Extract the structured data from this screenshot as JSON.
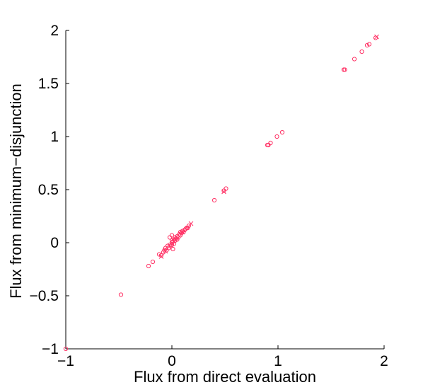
{
  "chart_data": {
    "type": "scatter",
    "title": "",
    "xlabel": "Flux from direct evaluation",
    "ylabel": "Flux from minimum−disjunction",
    "xlim": [
      -1,
      2
    ],
    "ylim": [
      -1,
      2
    ],
    "xticks": [
      -1,
      0,
      1,
      2
    ],
    "xtick_labels": [
      "−1",
      "0",
      "1",
      "2"
    ],
    "yticks": [
      -1,
      -0.5,
      0,
      0.5,
      1,
      1.5,
      2
    ],
    "ytick_labels": [
      "−1",
      "−0.5",
      "0",
      "0.5",
      "1",
      "1.5",
      "2"
    ],
    "grid": false,
    "legend": "none",
    "color": "#ff3366",
    "series": [
      {
        "marker": "circle",
        "points": [
          [
            -1.0,
            -1.0
          ],
          [
            -0.48,
            -0.49
          ],
          [
            -0.22,
            -0.22
          ],
          [
            -0.18,
            -0.18
          ],
          [
            -0.12,
            -0.11
          ],
          [
            -0.1,
            -0.12
          ],
          [
            -0.08,
            -0.09
          ],
          [
            -0.07,
            -0.07
          ],
          [
            -0.06,
            -0.05
          ],
          [
            -0.05,
            -0.07
          ],
          [
            -0.04,
            -0.03
          ],
          [
            -0.03,
            -0.05
          ],
          [
            -0.02,
            -0.02
          ],
          [
            -0.01,
            -0.03
          ],
          [
            0.0,
            0.0
          ],
          [
            0.0,
            -0.02
          ],
          [
            0.0,
            0.02
          ],
          [
            0.01,
            0.01
          ],
          [
            0.02,
            0.03
          ],
          [
            0.02,
            -0.01
          ],
          [
            0.03,
            0.02
          ],
          [
            0.03,
            0.05
          ],
          [
            0.04,
            0.04
          ],
          [
            0.05,
            0.03
          ],
          [
            0.05,
            0.06
          ],
          [
            0.06,
            0.05
          ],
          [
            0.07,
            0.08
          ],
          [
            0.08,
            0.07
          ],
          [
            0.08,
            0.1
          ],
          [
            0.09,
            0.09
          ],
          [
            0.1,
            0.11
          ],
          [
            0.11,
            0.1
          ],
          [
            0.12,
            0.12
          ],
          [
            0.13,
            0.13
          ],
          [
            0.14,
            0.14
          ],
          [
            0.15,
            0.14
          ],
          [
            0.16,
            0.16
          ],
          [
            -0.02,
            0.05
          ],
          [
            0.01,
            -0.06
          ],
          [
            0.0,
            0.07
          ],
          [
            0.4,
            0.4
          ],
          [
            0.49,
            0.49
          ],
          [
            0.51,
            0.51
          ],
          [
            0.9,
            0.92
          ],
          [
            0.91,
            0.92
          ],
          [
            0.93,
            0.94
          ],
          [
            0.99,
            1.0
          ],
          [
            1.04,
            1.04
          ],
          [
            1.62,
            1.63
          ],
          [
            1.63,
            1.63
          ],
          [
            1.72,
            1.73
          ],
          [
            1.79,
            1.8
          ],
          [
            1.84,
            1.86
          ],
          [
            1.86,
            1.87
          ],
          [
            1.92,
            1.93
          ]
        ]
      },
      {
        "marker": "x",
        "points": [
          [
            -0.1,
            -0.13
          ],
          [
            -0.06,
            -0.08
          ],
          [
            0.1,
            0.1
          ],
          [
            0.18,
            0.18
          ],
          [
            0.49,
            0.48
          ],
          [
            1.93,
            1.94
          ]
        ]
      }
    ]
  }
}
